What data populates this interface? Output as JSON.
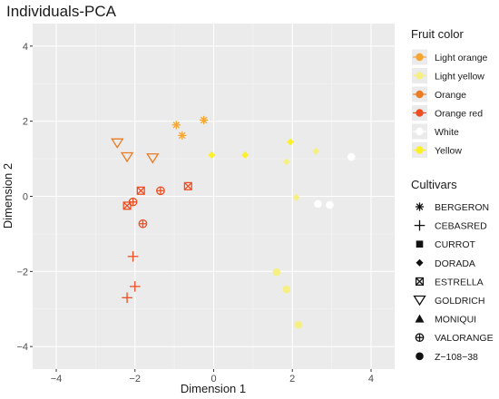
{
  "chart_data": {
    "type": "scatter",
    "title": "Individuals-PCA",
    "xlabel": "Dimension 1",
    "ylabel": "Dimension 2",
    "xlim": [
      -4.6,
      4.6
    ],
    "ylim": [
      -4.6,
      4.6
    ],
    "x_ticks": [
      -4,
      -2,
      0,
      2,
      4
    ],
    "y_ticks": [
      -4,
      -2,
      0,
      2,
      4
    ],
    "grid": true,
    "panel_background": "#ebebeb",
    "legend_position": "right",
    "color_legend": {
      "title": "Fruit color",
      "entries": [
        {
          "label": "Light  orange",
          "color": "#f7a531"
        },
        {
          "label": "Light  yellow",
          "color": "#f6ef84"
        },
        {
          "label": "Orange",
          "color": "#ec7b22"
        },
        {
          "label": "Orange  red",
          "color": "#ee4e22"
        },
        {
          "label": "White",
          "color": "#ffffff"
        },
        {
          "label": "Yellow",
          "color": "#fbf02a"
        }
      ]
    },
    "shape_legend": {
      "title": "Cultivars",
      "entries": [
        {
          "label": "BERGERON",
          "shape": "asterisk"
        },
        {
          "label": "CEBASRED",
          "shape": "plus"
        },
        {
          "label": "CURROT",
          "shape": "square"
        },
        {
          "label": "DORADA",
          "shape": "diamond"
        },
        {
          "label": "ESTRELLA",
          "shape": "square-x"
        },
        {
          "label": "GOLDRICH",
          "shape": "triangle-down-open"
        },
        {
          "label": "MONIQUI",
          "shape": "triangle"
        },
        {
          "label": "VALORANGE",
          "shape": "circle-plus"
        },
        {
          "label": "Z−108−38",
          "shape": "circle"
        }
      ]
    },
    "points": [
      {
        "x": -0.95,
        "y": 1.9,
        "color": "Light  orange",
        "cultivar": "BERGERON"
      },
      {
        "x": -0.25,
        "y": 2.03,
        "color": "Light  orange",
        "cultivar": "BERGERON"
      },
      {
        "x": -0.8,
        "y": 1.62,
        "color": "Light  orange",
        "cultivar": "BERGERON"
      },
      {
        "x": -2.45,
        "y": 1.42,
        "color": "Orange",
        "cultivar": "GOLDRICH"
      },
      {
        "x": -2.2,
        "y": 1.05,
        "color": "Orange",
        "cultivar": "GOLDRICH"
      },
      {
        "x": -1.55,
        "y": 1.02,
        "color": "Orange",
        "cultivar": "GOLDRICH"
      },
      {
        "x": -0.05,
        "y": 1.1,
        "color": "Yellow",
        "cultivar": "DORADA"
      },
      {
        "x": 0.8,
        "y": 1.1,
        "color": "Yellow",
        "cultivar": "DORADA"
      },
      {
        "x": 1.95,
        "y": 1.45,
        "color": "Yellow",
        "cultivar": "DORADA"
      },
      {
        "x": 1.85,
        "y": 0.92,
        "color": "Light  yellow",
        "cultivar": "DORADA"
      },
      {
        "x": 2.6,
        "y": 1.2,
        "color": "Light  yellow",
        "cultivar": "DORADA"
      },
      {
        "x": 2.1,
        "y": -0.03,
        "color": "Light  yellow",
        "cultivar": "DORADA"
      },
      {
        "x": 3.5,
        "y": 1.05,
        "color": "White",
        "cultivar": "Z−108−38"
      },
      {
        "x": 2.65,
        "y": -0.2,
        "color": "White",
        "cultivar": "Z−108−38"
      },
      {
        "x": 2.95,
        "y": -0.23,
        "color": "White",
        "cultivar": "Z−108−38"
      },
      {
        "x": 1.6,
        "y": -2.02,
        "color": "Light  yellow",
        "cultivar": "Z−108−38"
      },
      {
        "x": 1.85,
        "y": -2.48,
        "color": "Light  yellow",
        "cultivar": "Z−108−38"
      },
      {
        "x": 2.15,
        "y": -3.42,
        "color": "Light  yellow",
        "cultivar": "Z−108−38"
      },
      {
        "x": -1.85,
        "y": 0.15,
        "color": "Orange  red",
        "cultivar": "ESTRELLA"
      },
      {
        "x": -2.2,
        "y": -0.25,
        "color": "Orange  red",
        "cultivar": "ESTRELLA"
      },
      {
        "x": -0.65,
        "y": 0.27,
        "color": "Orange  red",
        "cultivar": "ESTRELLA"
      },
      {
        "x": -1.35,
        "y": 0.15,
        "color": "Orange  red",
        "cultivar": "VALORANGE"
      },
      {
        "x": -2.05,
        "y": -0.15,
        "color": "Orange  red",
        "cultivar": "VALORANGE"
      },
      {
        "x": -1.8,
        "y": -0.73,
        "color": "Orange  red",
        "cultivar": "VALORANGE"
      },
      {
        "x": -2.05,
        "y": -1.6,
        "color": "Orange  red",
        "cultivar": "CEBASRED"
      },
      {
        "x": -2.0,
        "y": -2.4,
        "color": "Orange  red",
        "cultivar": "CEBASRED"
      },
      {
        "x": -2.2,
        "y": -2.7,
        "color": "Orange  red",
        "cultivar": "CEBASRED"
      }
    ]
  }
}
